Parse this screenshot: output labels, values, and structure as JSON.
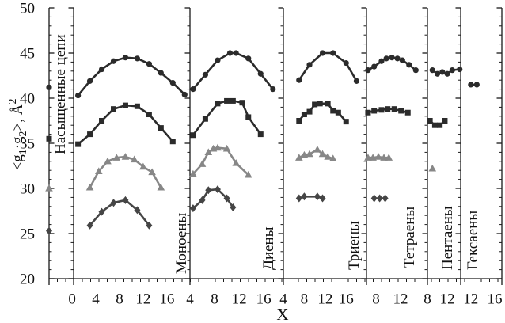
{
  "chart_data": {
    "type": "line",
    "title": "",
    "xlabel": "X",
    "ylabel": "<g1·g2>, Å2",
    "ylabel_parts": [
      {
        "t": "<g",
        "style": "normal"
      },
      {
        "t": "1",
        "style": "sub"
      },
      {
        "t": "·g",
        "style": "normal"
      },
      {
        "t": "2",
        "style": "sub"
      },
      {
        "t": ">, Å",
        "style": "normal"
      },
      {
        "t": "2",
        "style": "sup"
      }
    ],
    "ylim": [
      20,
      50
    ],
    "y_major_ticks": [
      20,
      25,
      30,
      35,
      40,
      45,
      50
    ],
    "y_minor_step": 1,
    "grid": false,
    "legend": "none",
    "marker_colors": {
      "circle": "#2b2b2b",
      "square": "#2b2b2b",
      "triangle": "#878787",
      "diamond": "#454545"
    },
    "panels": [
      {
        "id": "saturated",
        "label": "Насыщенные цепи",
        "xlim": [
          0,
          4
        ],
        "x_major_ticks": [],
        "series": [
          {
            "marker": "circle",
            "x": [
              0
            ],
            "y": [
              41.2
            ]
          },
          {
            "marker": "square",
            "x": [
              0
            ],
            "y": [
              35.5
            ]
          },
          {
            "marker": "triangle",
            "x": [
              0
            ],
            "y": [
              30.0
            ]
          },
          {
            "marker": "diamond",
            "x": [
              0
            ],
            "y": [
              25.3
            ]
          }
        ]
      },
      {
        "id": "monoenes",
        "label": "Моноены",
        "xlim": [
          0.25,
          19.9
        ],
        "x_major_ticks": [
          0,
          4,
          8,
          12,
          16
        ],
        "series": [
          {
            "marker": "circle",
            "x": [
              1,
              3,
              5,
              7,
              9,
              11,
              13,
              15,
              17,
              19
            ],
            "y": [
              40.3,
              41.9,
              43.2,
              44.1,
              44.5,
              44.4,
              43.8,
              42.8,
              41.7,
              40.4
            ]
          },
          {
            "marker": "square",
            "x": [
              1,
              3,
              5,
              7,
              9,
              11,
              13,
              15,
              17
            ],
            "y": [
              34.9,
              36.0,
              37.5,
              38.8,
              39.2,
              39.1,
              38.2,
              36.7,
              35.2
            ]
          },
          {
            "marker": "triangle",
            "x": [
              3,
              4.5,
              6,
              7.5,
              9,
              10.5,
              12,
              13.5,
              15
            ],
            "y": [
              30.1,
              31.9,
              33.0,
              33.4,
              33.5,
              33.2,
              32.4,
              31.8,
              30.1
            ]
          },
          {
            "marker": "diamond",
            "x": [
              3,
              5,
              7,
              9,
              11,
              13
            ],
            "y": [
              25.9,
              27.4,
              28.4,
              28.7,
              27.6,
              25.9
            ]
          }
        ]
      },
      {
        "id": "dienes",
        "label": "Диены",
        "xlim": [
          4,
          19.2
        ],
        "x_major_ticks": [
          4,
          8,
          12,
          16
        ],
        "series": [
          {
            "marker": "circle",
            "x": [
              4.5,
              6.5,
              8.5,
              10.5,
              11.5,
              13.5,
              15.5,
              17.5
            ],
            "y": [
              41.0,
              42.6,
              44.2,
              45.0,
              45.0,
              44.4,
              42.7,
              41.0
            ]
          },
          {
            "marker": "square",
            "x": [
              4.5,
              6.5,
              8.5,
              10,
              11,
              12.5,
              13.5,
              15.5
            ],
            "y": [
              35.9,
              37.7,
              39.4,
              39.7,
              39.7,
              39.5,
              37.9,
              36.0
            ]
          },
          {
            "marker": "triangle",
            "x": [
              4.5,
              6,
              7,
              7.8,
              8.5,
              10,
              11.5,
              13.5
            ],
            "y": [
              31.6,
              32.7,
              34.0,
              34.4,
              34.5,
              34.4,
              32.8,
              31.5
            ]
          },
          {
            "marker": "diamond",
            "x": [
              4.5,
              6,
              7,
              8.5,
              10,
              11
            ],
            "y": [
              27.8,
              28.7,
              29.8,
              29.9,
              28.9,
              27.9
            ]
          }
        ]
      },
      {
        "id": "trienes",
        "label": "Триены",
        "xlim": [
          4,
          19.9
        ],
        "x_major_ticks": [
          4,
          8,
          12,
          16
        ],
        "series": [
          {
            "marker": "circle",
            "x": [
              7,
              9,
              11.5,
              13.5,
              16,
              18
            ],
            "y": [
              42.0,
              43.7,
              45.0,
              45.0,
              43.9,
              41.9
            ]
          },
          {
            "marker": "square",
            "x": [
              7,
              8,
              9,
              10,
              11,
              12.5,
              13.5,
              14.5,
              16
            ],
            "y": [
              37.5,
              38.2,
              38.5,
              39.3,
              39.4,
              39.4,
              38.6,
              38.4,
              37.4
            ]
          },
          {
            "marker": "triangle",
            "x": [
              7,
              8,
              9,
              10.5,
              11.5,
              12.5,
              13.5
            ],
            "y": [
              33.4,
              33.7,
              33.8,
              34.3,
              33.8,
              33.5,
              33.3
            ]
          },
          {
            "marker": "diamond",
            "x": [
              7,
              8,
              10.5,
              11.5
            ],
            "y": [
              28.9,
              29.1,
              29.1,
              28.9
            ]
          }
        ]
      },
      {
        "id": "tetraenes",
        "label": "Тетраены",
        "xlim": [
          6.45,
          16.4
        ],
        "x_major_ticks": [
          8,
          12
        ],
        "series": [
          {
            "marker": "circle",
            "x": [
              6.7,
              7.7,
              8.9,
              9.7,
              10.6,
              11.5,
              12.3,
              13.4,
              14.5
            ],
            "y": [
              43.1,
              43.5,
              44.1,
              44.4,
              44.5,
              44.4,
              44.2,
              43.7,
              43.1
            ]
          },
          {
            "marker": "square",
            "x": [
              6.7,
              7.7,
              8.9,
              9.9,
              11,
              12.1,
              13.2
            ],
            "y": [
              38.4,
              38.6,
              38.7,
              38.8,
              38.8,
              38.6,
              38.4
            ]
          },
          {
            "marker": "triangle",
            "x": [
              6.7,
              7.5,
              8.4,
              9.3,
              10.1
            ],
            "y": [
              33.4,
              33.4,
              33.5,
              33.4,
              33.4
            ]
          },
          {
            "marker": "diamond",
            "x": [
              7.7,
              8.6,
              9.5
            ],
            "y": [
              28.9,
              28.9,
              28.9
            ]
          }
        ]
      },
      {
        "id": "pentaenes",
        "label": "Пентаены",
        "xlim": [
          8,
          14.7
        ],
        "x_major_ticks": [
          8,
          12
        ],
        "series": [
          {
            "marker": "circle",
            "x": [
              9,
              10,
              11,
              12,
              13,
              14.5
            ],
            "y": [
              43.1,
              42.7,
              42.9,
              42.7,
              43.1,
              43.2
            ]
          },
          {
            "marker": "square",
            "x": [
              8.5,
              9.5,
              10.5,
              11.5
            ],
            "y": [
              37.5,
              37.0,
              37.0,
              37.5
            ]
          },
          {
            "marker": "triangle",
            "x": [
              9
            ],
            "y": [
              32.2
            ]
          }
        ]
      },
      {
        "id": "hexaenes",
        "label": "Гексаены",
        "xlim": [
          10.3,
          17.2
        ],
        "x_major_ticks": [
          12,
          16
        ],
        "series": [
          {
            "marker": "circle",
            "x": [
              12,
              13
            ],
            "y": [
              41.5,
              41.5
            ]
          }
        ]
      }
    ]
  }
}
